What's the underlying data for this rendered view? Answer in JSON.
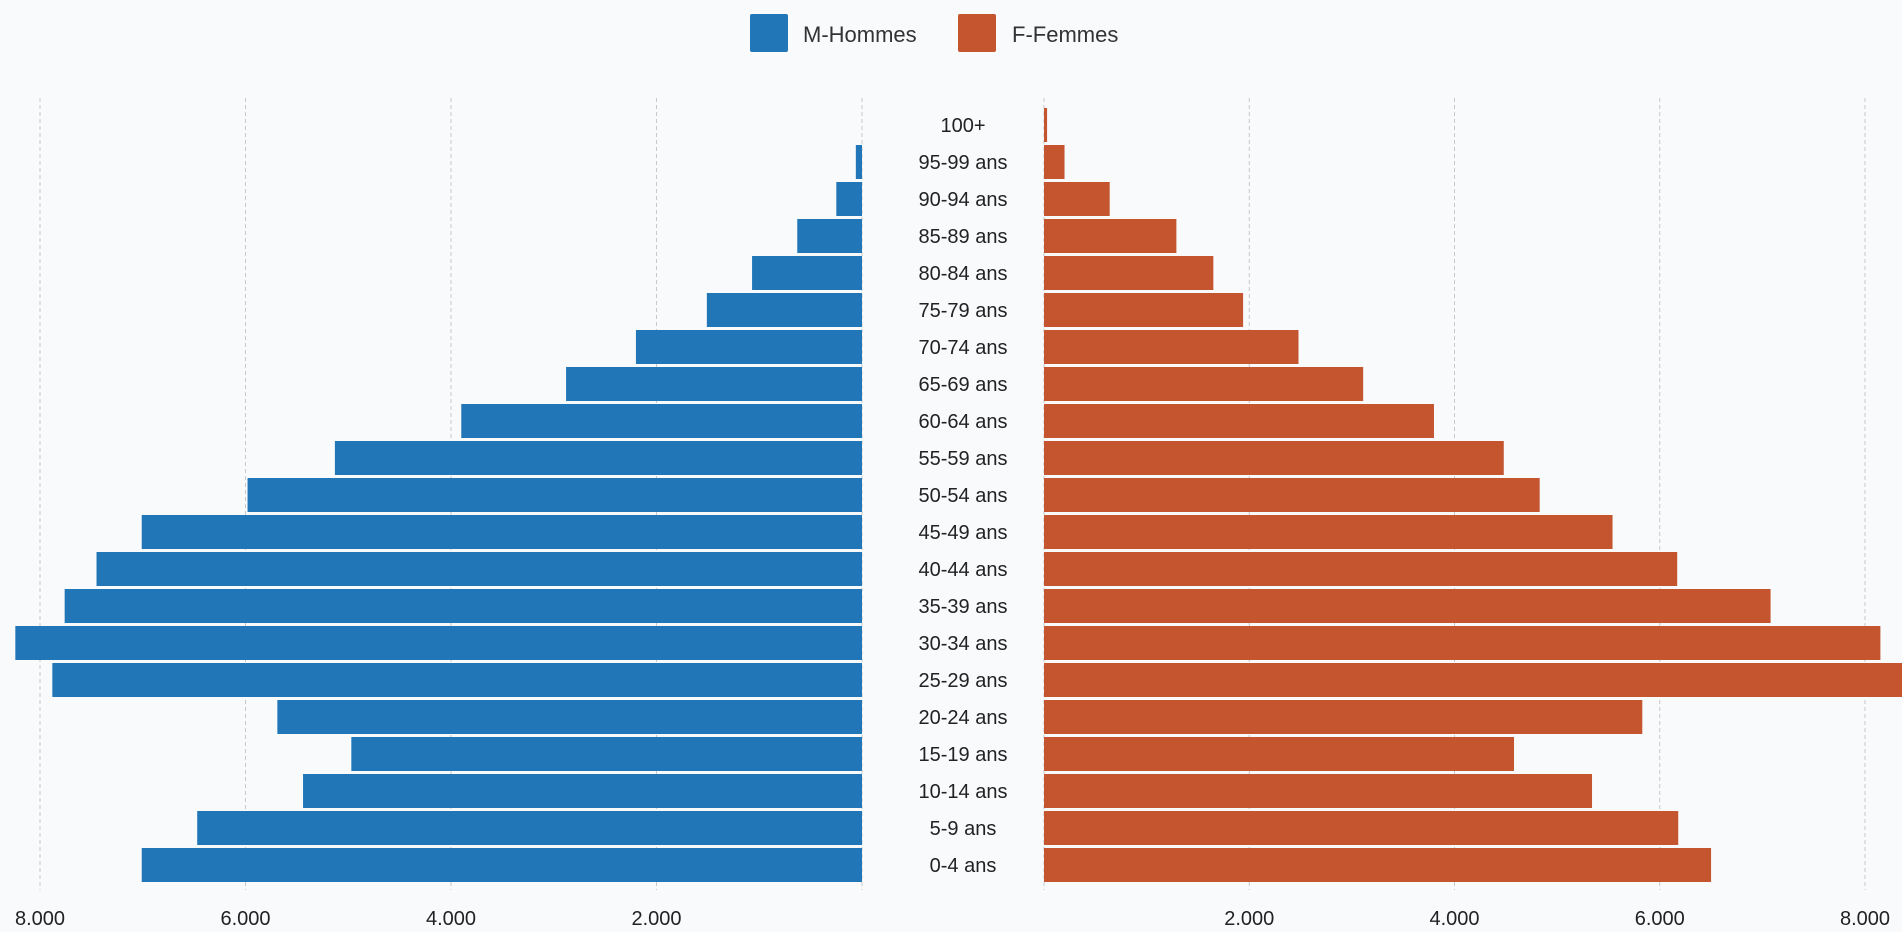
{
  "chart_data": {
    "type": "bar",
    "orientation": "population-pyramid",
    "legend_position": "top-center",
    "grid": true,
    "xlim": [
      0,
      8000
    ],
    "categories": [
      "100+",
      "95-99 ans",
      "90-94 ans",
      "85-89 ans",
      "80-84 ans",
      "75-79 ans",
      "70-74 ans",
      "65-69 ans",
      "60-64 ans",
      "55-59 ans",
      "50-54 ans",
      "45-49 ans",
      "40-44 ans",
      "35-39 ans",
      "30-34 ans",
      "25-29 ans",
      "20-24 ans",
      "15-19 ans",
      "10-14 ans",
      "5-9 ans",
      "0-4 ans"
    ],
    "series": [
      {
        "name": "M-Hommes",
        "color": "#2176b8",
        "side": "left",
        "values": [
          0,
          60,
          250,
          630,
          1070,
          1510,
          2200,
          2880,
          3900,
          5130,
          5980,
          7010,
          7450,
          7760,
          8240,
          7880,
          5690,
          4970,
          5440,
          6470,
          7010
        ]
      },
      {
        "name": "F-Femmes",
        "color": "#c4552f",
        "side": "right",
        "values": [
          30,
          200,
          640,
          1290,
          1650,
          1940,
          2480,
          3110,
          3800,
          4480,
          4830,
          5540,
          6170,
          7080,
          8150,
          8400,
          5830,
          4580,
          5340,
          6180,
          6500
        ]
      }
    ],
    "x_tick_labels_left": [
      "8.000",
      "6.000",
      "4.000",
      "2.000"
    ],
    "x_tick_values_left": [
      8000,
      6000,
      4000,
      2000
    ],
    "x_tick_labels_right": [
      "2.000",
      "4.000",
      "6.000",
      "8.000"
    ],
    "x_tick_values_right": [
      2000,
      4000,
      6000,
      8000
    ]
  }
}
